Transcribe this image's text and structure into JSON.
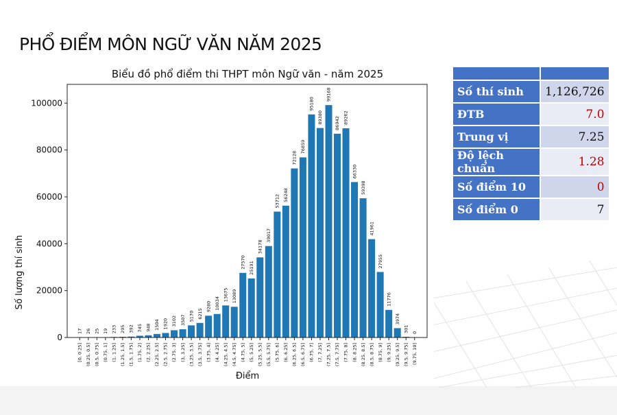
{
  "slide_title": "PHỔ ĐIỂM MÔN NGỮ VĂN NĂM 2025",
  "stats": [
    {
      "label": "Số thí sinh",
      "value": "1,126,726",
      "color": "#111111"
    },
    {
      "label": "ĐTB",
      "value": "7.0",
      "color": "#c00000"
    },
    {
      "label": "Trung vị",
      "value": "7.25",
      "color": "#111111"
    },
    {
      "label": "Độ lệch chuẩn",
      "value": "1.28",
      "color": "#c00000"
    },
    {
      "label": "Số điểm 10",
      "value": "0",
      "color": "#c00000"
    },
    {
      "label": "Số điểm 0",
      "value": "7",
      "color": "#111111"
    }
  ],
  "chart_data": {
    "type": "bar",
    "title": "Biểu đồ phổ điểm thi THPT môn Ngữ văn - năm 2025",
    "xlabel": "Điểm",
    "ylabel": "Số lượng thí sinh",
    "ylim": [
      0,
      108000
    ],
    "yticks": [
      0,
      20000,
      40000,
      60000,
      80000,
      100000
    ],
    "bar_color": "#1f77b4",
    "categories": [
      "[0, 0.25]",
      "(0.25, 0.5]",
      "(0.5, 0.75]",
      "(0.75, 1]",
      "(1, 1.25]",
      "(1.25, 1.5]",
      "(1.5, 1.75]",
      "(1.75, 2]",
      "(2, 2.25]",
      "(2.25, 2.5]",
      "(2.5, 2.75]",
      "(2.75, 3]",
      "(3, 3.25]",
      "(3.25, 3.5]",
      "(3.5, 3.75]",
      "(3.75, 4]",
      "(4, 4.25]",
      "(4.25, 4.5]",
      "(4.5, 4.75]",
      "(4.75, 5]",
      "(5, 5.25]",
      "(5.25, 5.5]",
      "(5.5, 5.75]",
      "(5.75, 6]",
      "(6, 6.25]",
      "(6.25, 6.5]",
      "(6.5, 6.75]",
      "(6.75, 7]",
      "(7, 7.25]",
      "(7.25, 7.5]",
      "(7.5, 7.75]",
      "(7.75, 8]",
      "(8, 8.25]",
      "(8.25, 8.5]",
      "(8.5, 8.75]",
      "(8.75, 9]",
      "(9, 9.25]",
      "(9.25, 9.5]",
      "(9.5, 9.75]",
      "(9.75, 10]"
    ],
    "values": [
      17,
      26,
      25,
      19,
      233,
      295,
      392,
      745,
      948,
      1504,
      1920,
      3102,
      3507,
      5170,
      6215,
      9280,
      10034,
      13675,
      13089,
      27570,
      25191,
      34178,
      39017,
      53712,
      56248,
      72128,
      76859,
      95180,
      89380,
      99168,
      86942,
      89262,
      66330,
      59398,
      41961,
      27955,
      11776,
      3974,
      301,
      0
    ]
  }
}
